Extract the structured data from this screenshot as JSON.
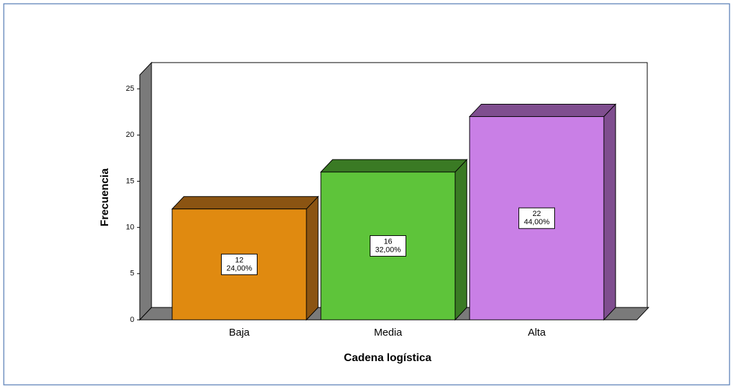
{
  "chart_data": {
    "type": "bar3d",
    "x_label": "Cadena logística",
    "y_label": "Frecuencia",
    "categories": [
      "Baja",
      "Media",
      "Alta"
    ],
    "values": [
      12,
      16,
      22
    ],
    "percents": [
      24,
      32,
      44
    ],
    "percent_labels": [
      "24,00%",
      "32,00%",
      "44,00%"
    ],
    "colors": [
      "#e08a10",
      "#5ec43a",
      "#c97fe6"
    ],
    "side_colors": [
      "#8b5412",
      "#3a7a24",
      "#7f4e8f"
    ],
    "ylim": [
      0,
      26.5
    ],
    "yticks": [
      0,
      5,
      10,
      15,
      20,
      25
    ]
  }
}
